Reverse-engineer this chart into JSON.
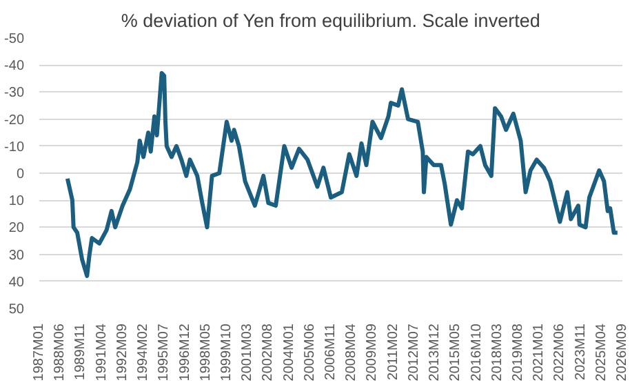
{
  "chart_data": {
    "type": "line",
    "title": "% deviation of Yen from equilibrium. Scale inverted",
    "x": [
      "1988-12",
      "1989-04",
      "1989-05",
      "1989-08",
      "1989-12",
      "1990-04",
      "1990-06",
      "1990-08",
      "1991-02",
      "1991-08",
      "1991-12",
      "1992-03",
      "1992-09",
      "1993-03",
      "1993-09",
      "1993-11",
      "1994-02",
      "1994-06",
      "1994-08",
      "1994-11",
      "1995-01",
      "1995-05",
      "1995-07",
      "1995-08",
      "1995-09",
      "1996-01",
      "1996-05",
      "1996-09",
      "1997-01",
      "1997-04",
      "1997-10",
      "1998-02",
      "1998-06",
      "1998-10",
      "1999-04",
      "1999-10",
      "2000-02",
      "2000-04",
      "2000-08",
      "2001-01",
      "2001-09",
      "2002-04",
      "2002-08",
      "2003-02",
      "2003-09",
      "2004-03",
      "2004-09",
      "2005-04",
      "2005-12",
      "2006-05",
      "2006-11",
      "2007-08",
      "2008-02",
      "2008-08",
      "2008-12",
      "2009-04",
      "2009-09",
      "2010-04",
      "2010-10",
      "2010-12",
      "2011-06",
      "2011-09",
      "2012-02",
      "2012-10",
      "2013-02",
      "2013-03",
      "2013-05",
      "2013-11",
      "2014-05",
      "2014-08",
      "2015-01",
      "2015-06",
      "2015-10",
      "2016-03",
      "2016-07",
      "2017-01",
      "2017-05",
      "2017-10",
      "2018-01",
      "2018-06",
      "2018-10",
      "2019-04",
      "2019-10",
      "2020-02",
      "2020-06",
      "2020-11",
      "2021-05",
      "2021-10",
      "2022-06",
      "2022-12",
      "2023-03",
      "2023-09",
      "2023-10",
      "2024-03",
      "2024-06",
      "2025-02",
      "2025-06",
      "2025-09",
      "2025-11",
      "2026-02",
      "2026-05"
    ],
    "series": [
      {
        "color": "#1b5e80",
        "values": [
          2,
          10,
          20,
          22,
          32,
          38,
          30,
          24,
          26,
          21,
          14,
          20,
          12,
          6,
          -4,
          -12,
          -6,
          -15,
          -8,
          -21,
          -14,
          -37,
          -36,
          -19,
          -10,
          -6,
          -10,
          -5,
          1,
          -5,
          1,
          11,
          20,
          1,
          0,
          -19,
          -12,
          -16,
          -10,
          3,
          12,
          1,
          11,
          12,
          -10,
          -2,
          -9,
          -5,
          5,
          -2,
          9,
          7,
          -7,
          1,
          -11,
          -3,
          -19,
          -13,
          -21,
          -26,
          -25,
          -31,
          -20,
          -19,
          -8,
          7,
          -6,
          -3,
          -3,
          4,
          19,
          10,
          13,
          -8,
          -7,
          -10,
          -3,
          1,
          -24,
          -21,
          -16,
          -22,
          -12,
          7,
          -1,
          -5,
          -2,
          3,
          18,
          7,
          17,
          12,
          19,
          20,
          9,
          -1,
          3,
          14,
          13,
          22,
          22
        ]
      }
    ],
    "xlim": [
      "1987-01",
      "2026-09"
    ],
    "xticks": [
      {
        "value": "1987-01",
        "label": "1987M01"
      },
      {
        "value": "1988-06",
        "label": "1988M06"
      },
      {
        "value": "1989-11",
        "label": "1989M11"
      },
      {
        "value": "1991-04",
        "label": "1991M04"
      },
      {
        "value": "1992-09",
        "label": "1992M09"
      },
      {
        "value": "1994-02",
        "label": "1994M02"
      },
      {
        "value": "1995-07",
        "label": "1995M07"
      },
      {
        "value": "1996-12",
        "label": "1996M12"
      },
      {
        "value": "1998-05",
        "label": "1998M05"
      },
      {
        "value": "1999-10",
        "label": "1999M10"
      },
      {
        "value": "2001-03",
        "label": "2001M03"
      },
      {
        "value": "2002-08",
        "label": "2002M08"
      },
      {
        "value": "2004-01",
        "label": "2004M01"
      },
      {
        "value": "2005-06",
        "label": "2005M06"
      },
      {
        "value": "2006-11",
        "label": "2006M11"
      },
      {
        "value": "2008-04",
        "label": "2008M04"
      },
      {
        "value": "2009-09",
        "label": "2009M09"
      },
      {
        "value": "2011-02",
        "label": "2011M02"
      },
      {
        "value": "2012-07",
        "label": "2012M07"
      },
      {
        "value": "2013-12",
        "label": "2013M12"
      },
      {
        "value": "2015-05",
        "label": "2015M05"
      },
      {
        "value": "2016-10",
        "label": "2016M10"
      },
      {
        "value": "2018-03",
        "label": "2018M03"
      },
      {
        "value": "2019-08",
        "label": "2019M08"
      },
      {
        "value": "2021-01",
        "label": "2021M01"
      },
      {
        "value": "2022-06",
        "label": "2022M06"
      },
      {
        "value": "2023-11",
        "label": "2023M11"
      },
      {
        "value": "2025-04",
        "label": "2025M04"
      },
      {
        "value": "2026-09",
        "label": "2026M09"
      }
    ],
    "ylim": [
      50,
      -50
    ],
    "yticks": [
      -50,
      -40,
      -30,
      -20,
      -10,
      0,
      10,
      20,
      30,
      40,
      50
    ],
    "grid": "y",
    "line_style": "solid"
  }
}
